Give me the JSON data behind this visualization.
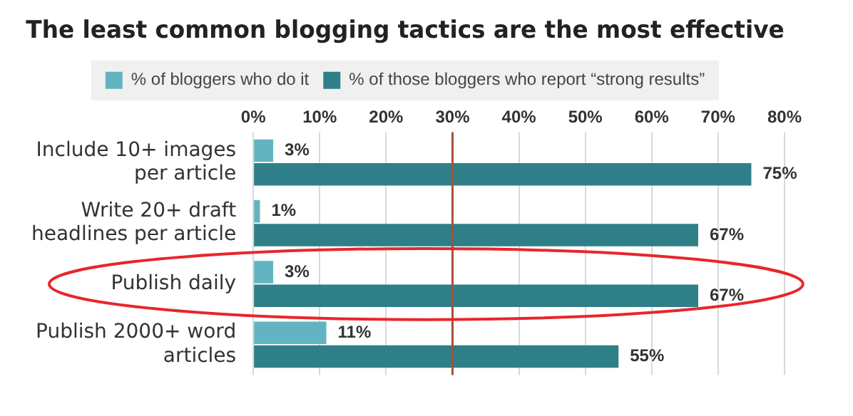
{
  "chart_data": {
    "type": "bar",
    "orientation": "horizontal",
    "title": "The least common blogging tactics are the most effective",
    "categories": [
      "Include 10+ images per article",
      "Write 20+ draft headlines per article",
      "Publish daily",
      "Publish 2000+ word articles"
    ],
    "series": [
      {
        "name": "% of bloggers who do it",
        "color": "#62b5c0",
        "values": [
          3,
          1,
          3,
          11
        ],
        "value_labels": [
          "3%",
          "1%",
          "3%",
          "11%"
        ]
      },
      {
        "name": "% of those bloggers who report “strong results”",
        "color": "#2f7f88",
        "values": [
          75,
          67,
          67,
          55
        ],
        "value_labels": [
          "75%",
          "67%",
          "67%",
          "55%"
        ]
      }
    ],
    "xlim": [
      0,
      80
    ],
    "xticks": [
      {
        "value": 0,
        "label": "0%"
      },
      {
        "value": 10,
        "label": "10%"
      },
      {
        "value": 20,
        "label": "20%"
      },
      {
        "value": 30,
        "label": "30%"
      },
      {
        "value": 40,
        "label": "40%"
      },
      {
        "value": 50,
        "label": "50%"
      },
      {
        "value": 60,
        "label": "60%"
      },
      {
        "value": 70,
        "label": "70%"
      },
      {
        "value": 80,
        "label": "80%"
      }
    ],
    "ref_lines": [
      {
        "axis": "x",
        "value": 30,
        "color": "#a5503c"
      }
    ],
    "grid": "x",
    "legend": "top"
  }
}
